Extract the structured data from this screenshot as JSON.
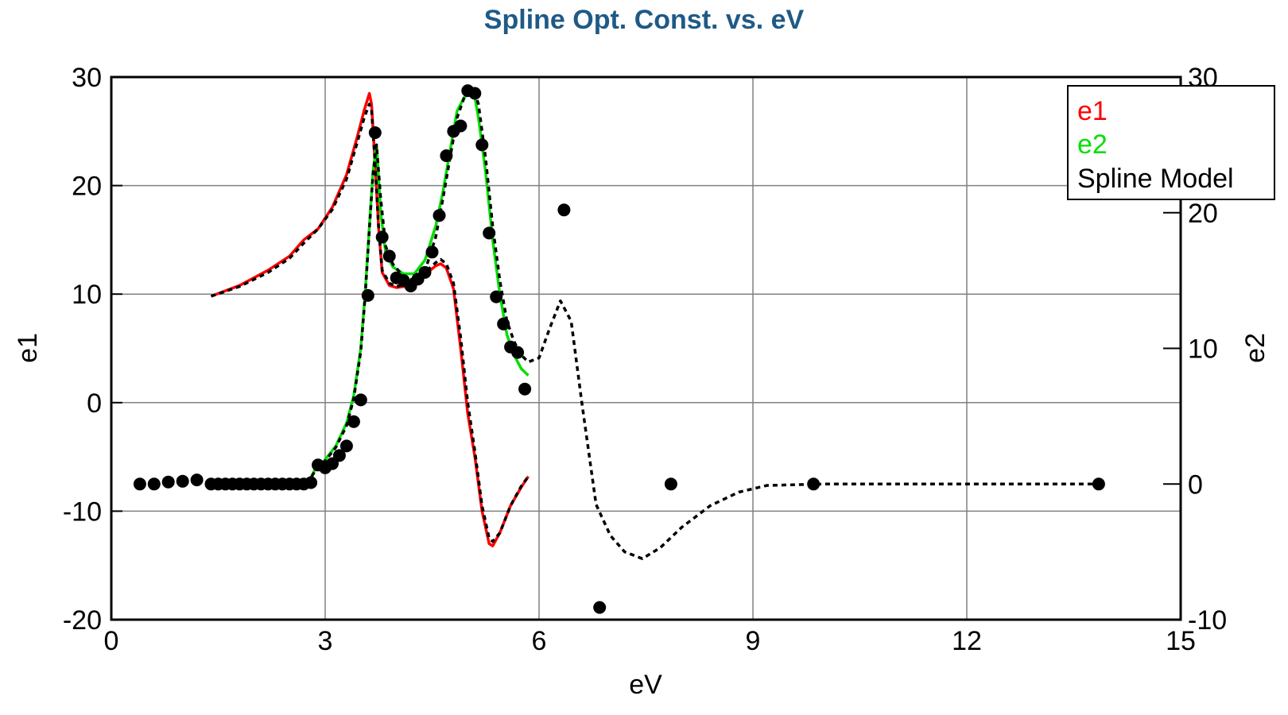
{
  "chart_data": {
    "type": "line",
    "title": "Spline Opt. Const. vs. eV",
    "xlabel": "eV",
    "ylabel_left": "e1",
    "ylabel_right": "e2",
    "xlim": [
      0,
      15
    ],
    "ylim_left": [
      -20,
      30
    ],
    "ylim_right": [
      -10,
      30
    ],
    "x_ticks": [
      0,
      3,
      6,
      9,
      12,
      15
    ],
    "y_left_ticks": [
      -20,
      -10,
      0,
      10,
      20,
      30
    ],
    "y_right_ticks": [
      -10,
      0,
      10,
      20,
      30
    ],
    "grid": true,
    "legend": {
      "position": "top-right",
      "entries": [
        "e1",
        "e2",
        "Spline Model"
      ]
    },
    "colors": {
      "e1": "#ff0000",
      "e2": "#00e000",
      "model": "#000000",
      "grid": "#808080",
      "title": "#1f5a86"
    },
    "series": [
      {
        "name": "e1",
        "axis": "left",
        "style": "solid",
        "x": [
          1.4,
          1.8,
          2.2,
          2.5,
          2.7,
          2.9,
          3.1,
          3.3,
          3.45,
          3.55,
          3.62,
          3.65,
          3.7,
          3.75,
          3.8,
          3.9,
          4.0,
          4.2,
          4.4,
          4.55,
          4.62,
          4.7,
          4.8,
          4.9,
          5.0,
          5.1,
          5.2,
          5.3,
          5.35,
          5.45,
          5.6,
          5.75,
          5.85
        ],
        "y": [
          9.8,
          10.8,
          12.2,
          13.5,
          15.0,
          16.0,
          18.0,
          21.0,
          24.5,
          27.0,
          28.5,
          27.5,
          22.0,
          16.0,
          12.0,
          10.8,
          10.6,
          10.8,
          11.8,
          12.6,
          12.8,
          12.4,
          10.5,
          5.0,
          -1.0,
          -5.0,
          -10.0,
          -13.0,
          -13.2,
          -12.0,
          -9.5,
          -7.8,
          -6.8
        ]
      },
      {
        "name": "e2",
        "axis": "right",
        "style": "solid",
        "x": [
          2.75,
          2.85,
          3.0,
          3.15,
          3.3,
          3.4,
          3.5,
          3.56,
          3.62,
          3.67,
          3.72,
          3.78,
          3.85,
          3.95,
          4.1,
          4.25,
          4.4,
          4.55,
          4.65,
          4.75,
          4.85,
          4.95,
          5.05,
          5.1,
          5.15,
          5.25,
          5.35,
          5.45,
          5.55,
          5.65,
          5.75,
          5.85
        ],
        "y": [
          0.0,
          1.0,
          1.8,
          2.8,
          4.5,
          6.5,
          10.0,
          14.0,
          19.0,
          23.0,
          25.0,
          20.0,
          17.0,
          16.0,
          15.5,
          15.5,
          16.5,
          19.0,
          21.5,
          24.5,
          27.5,
          28.5,
          29.0,
          28.5,
          27.0,
          23.0,
          18.0,
          14.0,
          11.0,
          9.5,
          8.5,
          8.0
        ]
      },
      {
        "name": "Spline Model",
        "axis": "left",
        "style": "dotted",
        "x": [
          1.4,
          1.8,
          2.2,
          2.5,
          2.7,
          2.9,
          3.1,
          3.3,
          3.45,
          3.55,
          3.62,
          3.65,
          3.7,
          3.75,
          3.8,
          3.9,
          4.0,
          4.2,
          4.4,
          4.55,
          4.62,
          4.7,
          4.8,
          4.9,
          5.0,
          5.1,
          5.2,
          5.3,
          5.35,
          5.45,
          5.6,
          5.75,
          5.85
        ],
        "y": [
          9.8,
          10.7,
          12.0,
          13.3,
          14.7,
          16.0,
          17.8,
          20.6,
          24.0,
          26.3,
          27.5,
          27.0,
          22.0,
          16.0,
          12.2,
          11.0,
          10.7,
          11.0,
          12.0,
          12.9,
          13.2,
          12.8,
          11.0,
          6.0,
          0.0,
          -4.5,
          -9.5,
          -12.5,
          -12.8,
          -12.0,
          -9.5,
          -7.7,
          -6.8
        ]
      },
      {
        "name": "Spline Model",
        "axis": "right",
        "style": "dotted",
        "x": [
          2.75,
          2.85,
          3.0,
          3.15,
          3.3,
          3.4,
          3.5,
          3.56,
          3.62,
          3.67,
          3.72,
          3.78,
          3.85,
          3.95,
          4.1,
          4.25,
          4.4,
          4.55,
          4.65,
          4.75,
          4.85,
          4.95,
          5.05,
          5.1,
          5.15,
          5.25,
          5.35,
          5.45,
          5.55,
          5.65,
          5.75,
          5.85,
          6.0,
          6.15,
          6.3,
          6.45,
          6.6,
          6.8,
          7.0,
          7.2,
          7.45,
          7.7,
          8.0,
          8.4,
          8.8,
          9.2,
          10.0,
          12.0,
          13.9
        ],
        "y": [
          0.0,
          0.9,
          1.7,
          2.7,
          4.3,
          6.3,
          9.8,
          13.8,
          18.8,
          22.8,
          25.0,
          21.0,
          17.5,
          16.2,
          15.3,
          15.0,
          15.7,
          18.2,
          21.0,
          24.0,
          27.0,
          28.5,
          29.0,
          28.8,
          28.0,
          24.0,
          19.0,
          15.0,
          12.0,
          10.5,
          9.5,
          9.0,
          9.3,
          11.5,
          13.5,
          12.0,
          6.0,
          -1.5,
          -3.8,
          -5.0,
          -5.5,
          -4.7,
          -3.2,
          -1.6,
          -0.6,
          -0.1,
          0.0,
          0.0,
          0.0
        ]
      }
    ],
    "points": {
      "x": [
        0.4,
        0.6,
        0.8,
        1.0,
        1.2,
        1.4,
        1.5,
        1.6,
        1.7,
        1.8,
        1.9,
        2.0,
        2.1,
        2.2,
        2.3,
        2.4,
        2.5,
        2.6,
        2.7,
        2.8,
        2.9,
        3.0,
        3.1,
        3.2,
        3.3,
        3.4,
        3.5,
        3.6,
        3.7,
        3.8,
        3.9,
        4.0,
        4.1,
        4.2,
        4.3,
        4.4,
        4.5,
        4.6,
        4.7,
        4.8,
        4.9,
        5.0,
        5.1,
        5.2,
        5.3,
        5.4,
        5.5,
        5.6,
        5.7,
        5.8,
        6.35,
        6.85,
        7.85,
        9.85,
        13.85
      ],
      "y_e2": [
        0.0,
        0.0,
        0.15,
        0.2,
        0.3,
        0.0,
        0.0,
        0.0,
        0.0,
        0.0,
        0.0,
        0.0,
        0.0,
        0.0,
        0.0,
        0.0,
        0.0,
        0.0,
        0.0,
        0.1,
        1.4,
        1.2,
        1.5,
        2.1,
        2.8,
        4.6,
        6.2,
        13.9,
        25.9,
        18.2,
        16.8,
        15.2,
        15.0,
        14.6,
        15.1,
        15.6,
        17.1,
        19.8,
        24.2,
        26.0,
        26.4,
        29.0,
        28.8,
        25.0,
        18.5,
        13.8,
        11.8,
        10.1,
        9.7,
        7.0,
        20.2,
        -9.1,
        0.0,
        0.0,
        0.0
      ]
    }
  }
}
